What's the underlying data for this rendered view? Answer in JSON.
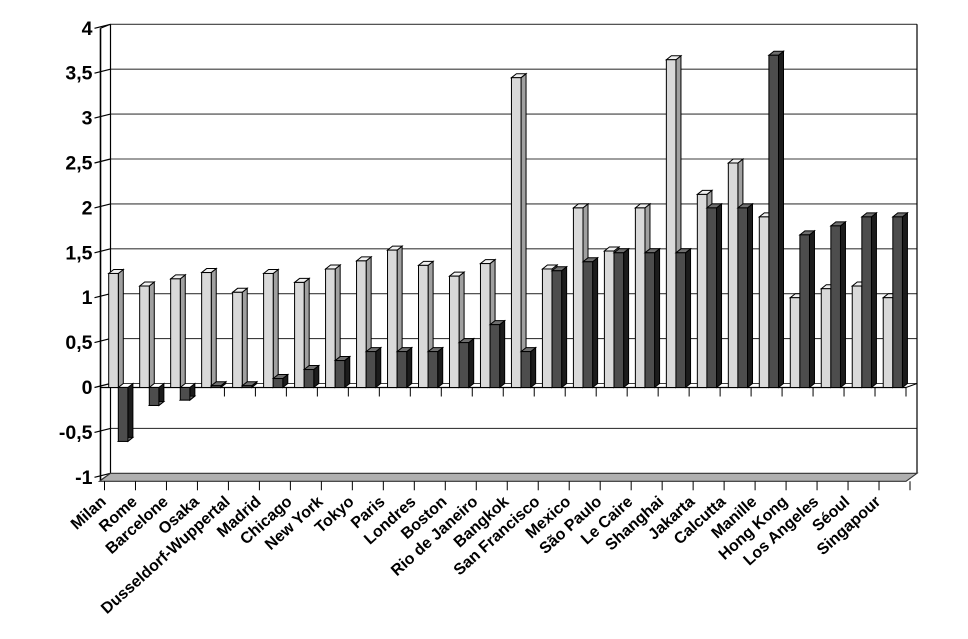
{
  "chart_data": {
    "type": "bar",
    "style": "3d-column",
    "title": "",
    "xlabel": "",
    "ylabel": "",
    "grid": true,
    "legend": "none",
    "background": "#ffffff",
    "axis_color": "#000000",
    "gridline_color": "#3c3c3c",
    "floor_color": "#b0b0b0",
    "ylim": [
      -1,
      4
    ],
    "ytick_step": 0.5,
    "ytick_labels": [
      "4",
      "3,5",
      "3",
      "2,5",
      "2",
      "1,5",
      "1",
      "0,5",
      "0",
      "-0,5",
      "-1"
    ],
    "decimal_separator": ",",
    "categories": [
      "Milan",
      "Rome",
      "Barcelone",
      "Osaka",
      "Dusseldorf-Wuppertal",
      "Madrid",
      "Chicago",
      "New York",
      "Tokyo",
      "Paris",
      "Londres",
      "Boston",
      "Rio de Janeiro",
      "Bangkok",
      "San Francisco",
      "Mexico",
      "São Paulo",
      "Le Caire",
      "Shanghai",
      "Jakarta",
      "Calcutta",
      "Manille",
      "Hong Kong",
      "Los Angeles",
      "Séoul",
      "Singapour"
    ],
    "series": [
      {
        "name": "light-gray",
        "color_front": "#d9d9d9",
        "color_top": "#f0f0f0",
        "color_side": "#a0a0a0",
        "values": [
          1.27,
          1.13,
          1.21,
          1.28,
          1.06,
          1.27,
          1.17,
          1.32,
          1.41,
          1.53,
          1.36,
          1.24,
          1.38,
          3.45,
          1.32,
          2.0,
          1.52,
          2.0,
          3.65,
          2.15,
          2.5,
          1.9,
          1.0,
          1.1,
          1.13,
          1.0
        ]
      },
      {
        "name": "dark-gray",
        "color_front": "#4d4d4d",
        "color_top": "#6f6f6f",
        "color_side": "#1c1c1c",
        "values": [
          -0.6,
          -0.2,
          -0.14,
          0.02,
          0.02,
          0.1,
          0.2,
          0.3,
          0.4,
          0.4,
          0.4,
          0.5,
          0.7,
          0.4,
          1.3,
          1.4,
          1.5,
          1.5,
          1.5,
          2.0,
          2.0,
          3.7,
          1.7,
          1.8,
          1.9,
          1.9
        ]
      }
    ]
  }
}
